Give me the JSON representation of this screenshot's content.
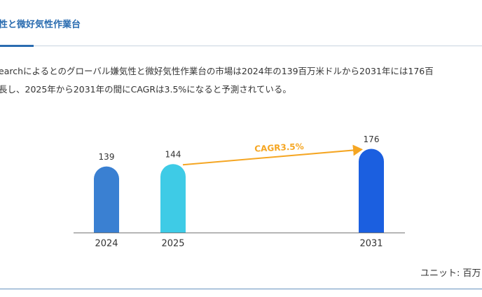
{
  "heading": "性と微好気性作業台",
  "paragraph": [
    "earchによるとのグローバル嫌気性と微好気性作業台の市場は2024年の139百万米ドルから2031年には176百",
    "長し、2025年から2031年の間にCAGRは3.5%になると予測されている。"
  ],
  "unit": "ユニット: 百万",
  "chart_data": {
    "type": "bar",
    "categories": [
      "2024",
      "2025",
      "2031"
    ],
    "values": [
      139,
      144,
      176
    ],
    "colors": [
      "#3a80d2",
      "#3ecbe6",
      "#1b5fe0"
    ],
    "ylim": [
      0,
      240
    ],
    "annotation": "CAGR3.5%",
    "annotation_color": "#f5a623"
  }
}
